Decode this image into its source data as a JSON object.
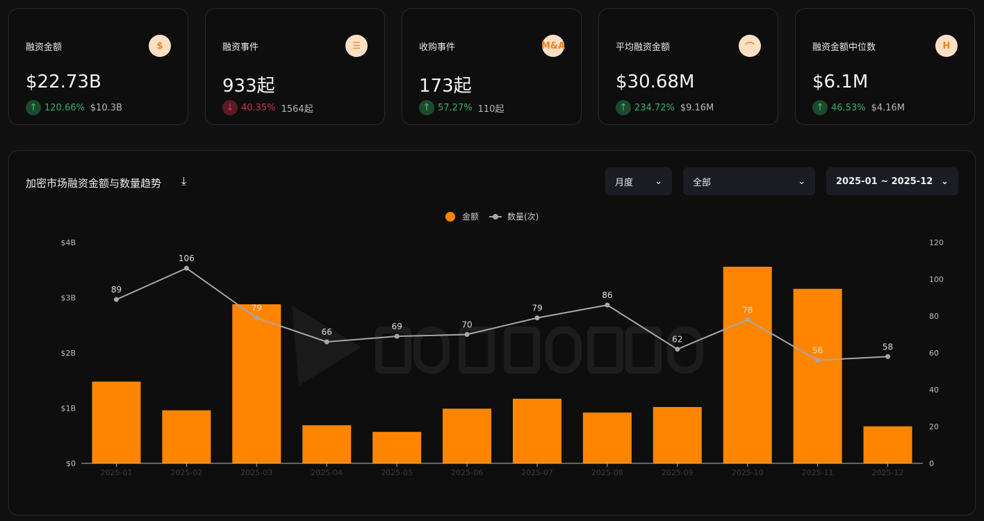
{
  "cards": [
    {
      "label": "融资金额",
      "icon": "dollar-icon",
      "icon_text": "$",
      "value": "$22.73B",
      "trend": "up",
      "change": "120.66%",
      "previous": "$10.3B"
    },
    {
      "label": "融资事件",
      "icon": "list-icon",
      "icon_text": "☰",
      "value": "933起",
      "trend": "down",
      "change": "40.35%",
      "previous": "1564起"
    },
    {
      "label": "收购事件",
      "icon": "m-and-a-icon",
      "icon_text": "M&A",
      "value": "173起",
      "trend": "up",
      "change": "57.27%",
      "previous": "110起"
    },
    {
      "label": "平均融资金额",
      "icon": "bell-curve-icon",
      "icon_text": "⌒",
      "value": "$30.68M",
      "trend": "up",
      "change": "234.72%",
      "previous": "$9.16M"
    },
    {
      "label": "融资金额中位数",
      "icon": "median-icon",
      "icon_text": "H",
      "value": "$6.1M",
      "trend": "up",
      "change": "46.53%",
      "previous": "$4.16M"
    }
  ],
  "panel": {
    "title": "加密市场融资金额与数量趋势",
    "period": "月度",
    "category": "全部",
    "date_range": "2025-01 ~ 2025-12"
  },
  "chart_data": {
    "type": "bar+line",
    "categories": [
      "2025-01",
      "2025-02",
      "2025-03",
      "2025-04",
      "2025-05",
      "2025-06",
      "2025-07",
      "2025-08",
      "2025-09",
      "2025-10",
      "2025-11",
      "2025-12"
    ],
    "series": [
      {
        "name": "金额",
        "type": "bar",
        "axis": "left",
        "unit": "USD billions",
        "color": "#ff8500",
        "values": [
          1.48,
          0.96,
          2.88,
          0.69,
          0.57,
          0.99,
          1.17,
          0.92,
          1.02,
          3.56,
          3.16,
          0.67
        ]
      },
      {
        "name": "数量(次)",
        "type": "line",
        "axis": "right",
        "color": "#a8a8a8",
        "values": [
          89,
          106,
          79,
          66,
          69,
          70,
          79,
          86,
          62,
          78,
          56,
          58
        ]
      }
    ],
    "y_left": {
      "range": [
        0,
        4
      ],
      "ticks": [
        "$0",
        "$1B",
        "$2B",
        "$3B",
        "$4B"
      ]
    },
    "y_right": {
      "range": [
        0,
        120
      ],
      "ticks": [
        "0",
        "20",
        "40",
        "60",
        "80",
        "100",
        "120"
      ]
    },
    "legend": "top-center",
    "grid": false,
    "watermark": "ROOTDATA"
  }
}
